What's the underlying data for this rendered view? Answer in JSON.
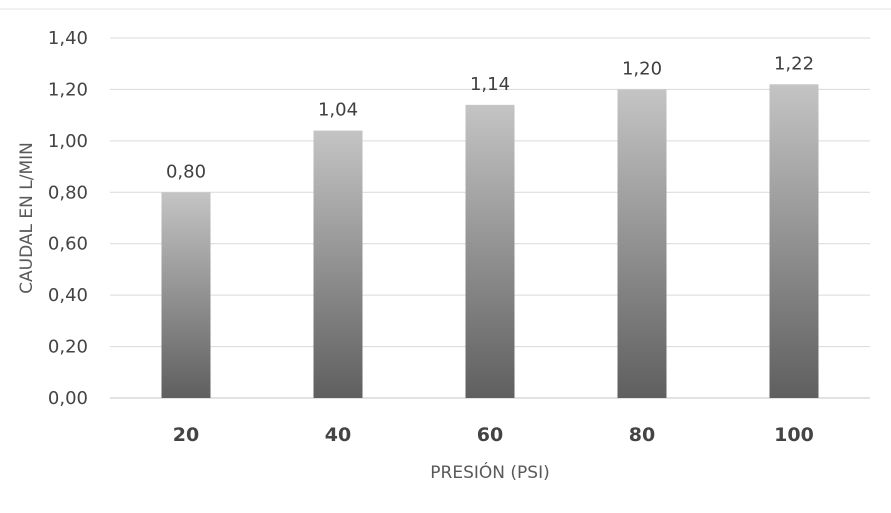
{
  "chart_data": {
    "type": "bar",
    "categories": [
      "20",
      "40",
      "60",
      "80",
      "100"
    ],
    "values": [
      0.8,
      1.04,
      1.14,
      1.2,
      1.22
    ],
    "data_labels": [
      "0,80",
      "1,04",
      "1,14",
      "1,20",
      "1,22"
    ],
    "title": "",
    "xlabel": "PRESIÓN (PSI)",
    "ylabel": "CAUDAL EN L/MIN",
    "ylim": [
      0,
      1.4
    ],
    "yticks": [
      0,
      0.2,
      0.4,
      0.6,
      0.8,
      1.0,
      1.2,
      1.4
    ],
    "ytick_labels": [
      "0,00",
      "0,20",
      "0,40",
      "0,60",
      "0,80",
      "1,00",
      "1,20",
      "1,40"
    ],
    "grid": true,
    "legend": "none",
    "colors": {
      "bar_top": "#c4c4c4",
      "bar_bottom": "#5f5f5f",
      "grid": "#d9d9d9",
      "frame": "#e3e3e3"
    }
  }
}
